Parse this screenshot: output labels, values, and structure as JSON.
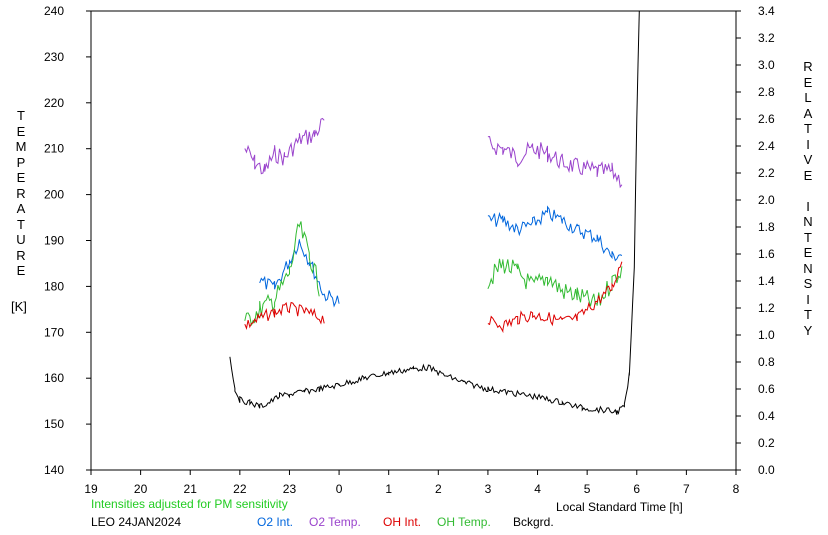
{
  "chart_data": {
    "type": "line",
    "station": "LEO 24JAN2024",
    "note": "Intensities adjusted for PM sensitivity",
    "left_axis": {
      "letters": [
        "T",
        "E",
        "M",
        "P",
        "E",
        "R",
        "A",
        "T",
        "U",
        "R",
        "E"
      ],
      "unit": "[K]",
      "ylim": [
        140,
        240
      ],
      "ticks": [
        "140",
        "150",
        "160",
        "170",
        "180",
        "190",
        "200",
        "210",
        "220",
        "230",
        "240"
      ]
    },
    "right_axis": {
      "letters_1": [
        "R",
        "E",
        "L",
        "A",
        "T",
        "I",
        "V",
        "E"
      ],
      "letters_2": [
        "I",
        "N",
        "T",
        "E",
        "N",
        "S",
        "I",
        "T",
        "Y"
      ],
      "ylim": [
        0.0,
        3.4
      ],
      "ticks": [
        "0.0",
        "0.2",
        "0.4",
        "0.6",
        "0.8",
        "1.0",
        "1.2",
        "1.4",
        "1.6",
        "1.8",
        "2.0",
        "2.2",
        "2.4",
        "2.6",
        "2.8",
        "3.0",
        "3.2",
        "3.4"
      ]
    },
    "x_axis": {
      "label": "Local Standard Time [h]",
      "tick_labels": [
        "19",
        "20",
        "21",
        "22",
        "23",
        "0",
        "1",
        "2",
        "3",
        "4",
        "5",
        "6",
        "7",
        "8"
      ],
      "xlim": [
        19,
        32
      ]
    },
    "legend": [
      {
        "name": "O2 Int.",
        "color": "#0066dd"
      },
      {
        "name": "O2 Temp.",
        "color": "#9a44cc"
      },
      {
        "name": "OH Int.",
        "color": "#dd0000"
      },
      {
        "name": "OH Temp.",
        "color": "#33bb33"
      },
      {
        "name": "Bckgrd.",
        "color": "#000000"
      }
    ],
    "note_color": "#22cc22",
    "series": [
      {
        "name": "O2 Temp.",
        "color": "#9a44cc",
        "axis": "left",
        "points": [
          [
            22.1,
            210
          ],
          [
            22.3,
            207
          ],
          [
            22.5,
            205
          ],
          [
            22.7,
            209
          ],
          [
            22.9,
            208
          ],
          [
            23.2,
            212
          ],
          [
            23.5,
            213
          ],
          [
            23.7,
            216
          ],
          [
            27.0,
            211
          ],
          [
            27.3,
            210
          ],
          [
            27.6,
            208
          ],
          [
            27.9,
            210
          ],
          [
            28.2,
            209
          ],
          [
            28.5,
            207
          ],
          [
            28.8,
            206
          ],
          [
            29.2,
            205
          ],
          [
            29.5,
            205
          ],
          [
            29.7,
            203
          ]
        ]
      },
      {
        "name": "O2 Int.",
        "color": "#0066dd",
        "axis": "right",
        "points": [
          [
            22.4,
            1.4
          ],
          [
            22.7,
            1.35
          ],
          [
            23.0,
            1.55
          ],
          [
            23.2,
            1.7
          ],
          [
            23.4,
            1.55
          ],
          [
            23.7,
            1.3
          ],
          [
            24.0,
            1.25
          ],
          [
            27.0,
            1.85
          ],
          [
            27.3,
            1.85
          ],
          [
            27.6,
            1.78
          ],
          [
            27.9,
            1.82
          ],
          [
            28.2,
            1.9
          ],
          [
            28.5,
            1.85
          ],
          [
            28.8,
            1.78
          ],
          [
            29.2,
            1.72
          ],
          [
            29.5,
            1.58
          ],
          [
            29.7,
            1.6
          ]
        ]
      },
      {
        "name": "OH Temp.",
        "color": "#33bb33",
        "axis": "left",
        "points": [
          [
            22.1,
            172
          ],
          [
            22.4,
            175
          ],
          [
            22.7,
            177
          ],
          [
            23.0,
            183
          ],
          [
            23.2,
            193
          ],
          [
            23.4,
            187
          ],
          [
            23.6,
            180
          ],
          [
            27.0,
            181
          ],
          [
            27.3,
            185
          ],
          [
            27.6,
            183
          ],
          [
            27.9,
            180
          ],
          [
            28.2,
            182
          ],
          [
            28.5,
            179
          ],
          [
            28.8,
            178
          ],
          [
            29.2,
            176
          ],
          [
            29.5,
            181
          ],
          [
            29.7,
            184
          ]
        ]
      },
      {
        "name": "OH Int.",
        "color": "#dd0000",
        "axis": "right",
        "points": [
          [
            22.1,
            1.07
          ],
          [
            22.4,
            1.12
          ],
          [
            22.7,
            1.17
          ],
          [
            23.0,
            1.2
          ],
          [
            23.3,
            1.17
          ],
          [
            23.7,
            1.12
          ],
          [
            27.0,
            1.1
          ],
          [
            27.3,
            1.07
          ],
          [
            27.6,
            1.12
          ],
          [
            27.9,
            1.15
          ],
          [
            28.2,
            1.13
          ],
          [
            28.5,
            1.1
          ],
          [
            28.8,
            1.12
          ],
          [
            29.2,
            1.25
          ],
          [
            29.5,
            1.35
          ],
          [
            29.7,
            1.55
          ]
        ]
      },
      {
        "name": "Bckgrd.",
        "color": "#000000",
        "axis": "right",
        "points": [
          [
            21.8,
            0.85
          ],
          [
            21.9,
            0.6
          ],
          [
            22.0,
            0.52
          ],
          [
            22.2,
            0.5
          ],
          [
            22.4,
            0.47
          ],
          [
            22.6,
            0.5
          ],
          [
            22.8,
            0.55
          ],
          [
            23.0,
            0.56
          ],
          [
            23.3,
            0.58
          ],
          [
            23.6,
            0.6
          ],
          [
            24.0,
            0.63
          ],
          [
            24.5,
            0.68
          ],
          [
            25.0,
            0.72
          ],
          [
            25.5,
            0.75
          ],
          [
            25.8,
            0.76
          ],
          [
            26.0,
            0.72
          ],
          [
            26.5,
            0.65
          ],
          [
            27.0,
            0.6
          ],
          [
            27.5,
            0.57
          ],
          [
            28.0,
            0.54
          ],
          [
            28.5,
            0.5
          ],
          [
            28.9,
            0.46
          ],
          [
            29.2,
            0.45
          ],
          [
            29.6,
            0.43
          ],
          [
            29.75,
            0.47
          ],
          [
            29.85,
            0.7
          ],
          [
            29.95,
            1.5
          ],
          [
            30.0,
            2.6
          ],
          [
            30.05,
            3.4
          ]
        ]
      }
    ]
  }
}
